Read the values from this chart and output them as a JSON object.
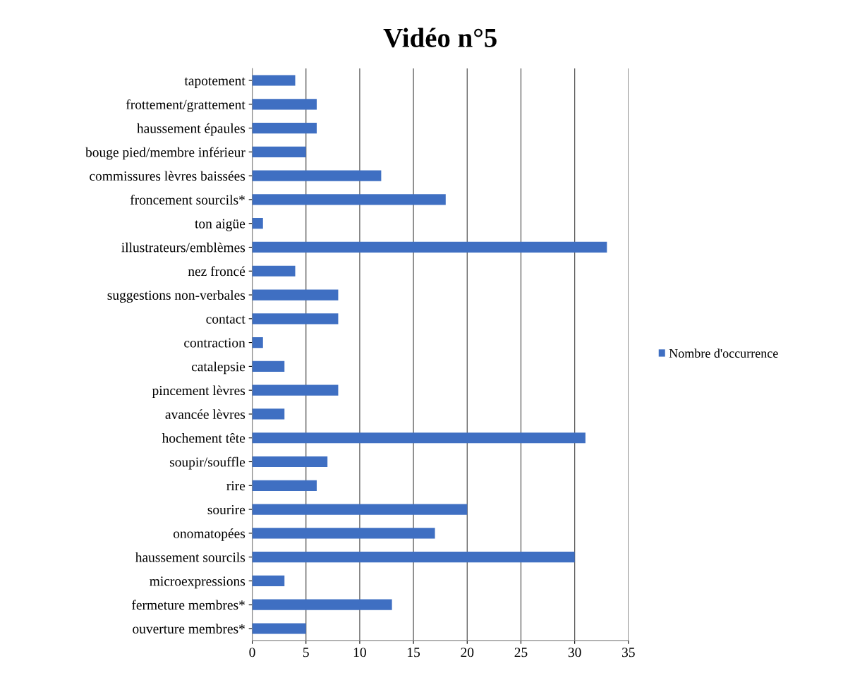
{
  "chart_data": {
    "type": "bar",
    "orientation": "horizontal",
    "title": "Vidéo n°5",
    "categories": [
      "tapotement",
      "frottement/grattement",
      "haussement épaules",
      "bouge pied/membre inférieur",
      "commissures lèvres baissées",
      "froncement sourcils*",
      "ton aigüe",
      "illustrateurs/emblèmes",
      "nez froncé",
      "suggestions non-verbales",
      "contact",
      "contraction",
      "catalepsie",
      "pincement lèvres",
      "avancée lèvres",
      "hochement tête",
      "soupir/souffle",
      "rire",
      "sourire",
      "onomatopées",
      "haussement sourcils",
      "microexpressions",
      "fermeture membres*",
      "ouverture membres*"
    ],
    "series": [
      {
        "name": "Nombre d'occurrence",
        "color": "#3f6fc2",
        "values": [
          4,
          6,
          6,
          5,
          12,
          18,
          1,
          33,
          4,
          8,
          8,
          1,
          3,
          8,
          3,
          31,
          7,
          6,
          20,
          17,
          30,
          3,
          13,
          5
        ]
      }
    ],
    "xlim": [
      0,
      35
    ],
    "xticks": [
      0,
      5,
      10,
      15,
      20,
      25,
      30,
      35
    ],
    "grid": "x",
    "legend": "right"
  }
}
